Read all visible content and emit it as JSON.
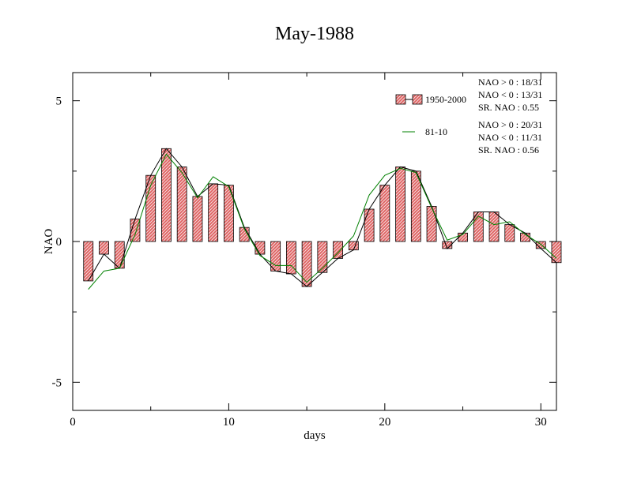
{
  "chart_data": {
    "type": "bar",
    "title": "May-1988",
    "xlabel": "days",
    "ylabel": "NAO",
    "xlim": [
      0,
      31
    ],
    "ylim": [
      -6,
      6
    ],
    "x_ticks": [
      0,
      10,
      20,
      30
    ],
    "y_ticks": [
      -5,
      0,
      5
    ],
    "x_tick_labels": [
      "0",
      "10",
      "20",
      "30"
    ],
    "y_tick_labels": [
      "-5",
      "0",
      "5"
    ],
    "x": [
      1,
      2,
      3,
      4,
      5,
      6,
      7,
      8,
      9,
      10,
      11,
      12,
      13,
      14,
      15,
      16,
      17,
      18,
      19,
      20,
      21,
      22,
      23,
      24,
      25,
      26,
      27,
      28,
      29,
      30,
      31
    ],
    "series": [
      {
        "name": "1950-2000",
        "kind": "bar-with-line",
        "values": [
          -1.4,
          -0.45,
          -0.95,
          0.8,
          2.35,
          3.3,
          2.65,
          1.6,
          2.05,
          2.0,
          0.5,
          -0.45,
          -1.05,
          -1.15,
          -1.6,
          -1.1,
          -0.6,
          -0.3,
          1.15,
          2.0,
          2.65,
          2.5,
          1.25,
          -0.25,
          0.3,
          1.05,
          1.05,
          0.6,
          0.3,
          -0.25,
          -0.75
        ],
        "color": "#e06060",
        "line_color": "#000000"
      },
      {
        "name": "81-10",
        "kind": "line",
        "values": [
          -1.7,
          -1.05,
          -0.95,
          0.25,
          2.0,
          3.1,
          2.45,
          1.55,
          2.3,
          1.95,
          0.45,
          -0.5,
          -0.85,
          -0.85,
          -1.45,
          -0.95,
          -0.4,
          0.2,
          1.65,
          2.35,
          2.6,
          2.45,
          1.2,
          0.05,
          0.25,
          0.9,
          0.6,
          0.7,
          0.25,
          -0.1,
          -0.6
        ],
        "color": "#008000"
      }
    ],
    "legend": {
      "placement": "top-right",
      "entries": [
        "1950-2000",
        "81-10"
      ]
    },
    "stats": [
      {
        "lines": [
          "NAO > 0 : 18/31",
          "NAO < 0 : 13/31",
          "SR. NAO :  0.55"
        ]
      },
      {
        "lines": [
          "NAO > 0 : 20/31",
          "NAO < 0 : 11/31",
          "SR. NAO :  0.56"
        ]
      }
    ],
    "grid": false
  }
}
